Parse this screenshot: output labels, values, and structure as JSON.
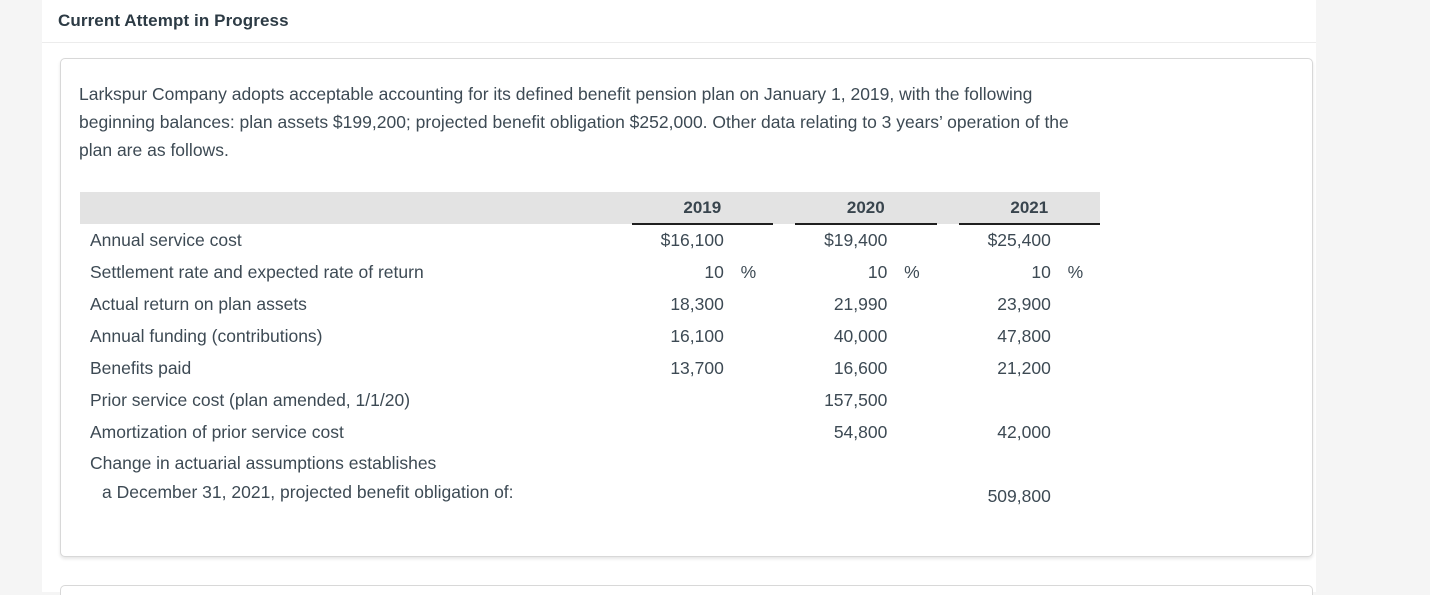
{
  "header": {
    "title": "Current Attempt in Progress"
  },
  "problem": {
    "intro_lines": [
      "Larkspur Company adopts acceptable accounting for its defined benefit pension plan on January 1, 2019, with the following",
      "beginning balances: plan assets $199,200; projected benefit obligation $252,000. Other data relating to 3 years’ operation of the",
      "plan are as follows."
    ],
    "begin_plan_assets": "$199,200",
    "begin_projected_benefit_obligation": "$252,000"
  },
  "table": {
    "year_headers": [
      "2019",
      "2020",
      "2021"
    ],
    "rows": [
      {
        "label": "Annual service cost",
        "y19": "$16,100",
        "p19": "",
        "y20": "$19,400",
        "p20": "",
        "y21": "$25,400",
        "p21": ""
      },
      {
        "label": "Settlement rate and expected rate of return",
        "y19": "10",
        "p19": "%",
        "y20": "10",
        "p20": "%",
        "y21": "10",
        "p21": "%"
      },
      {
        "label": "Actual return on plan assets",
        "y19": "18,300",
        "p19": "",
        "y20": "21,990",
        "p20": "",
        "y21": "23,900",
        "p21": ""
      },
      {
        "label": "Annual funding (contributions)",
        "y19": "16,100",
        "p19": "",
        "y20": "40,000",
        "p20": "",
        "y21": "47,800",
        "p21": ""
      },
      {
        "label": "Benefits paid",
        "y19": "13,700",
        "p19": "",
        "y20": "16,600",
        "p20": "",
        "y21": "21,200",
        "p21": ""
      },
      {
        "label": "Prior service cost (plan amended, 1/1/20)",
        "y19": "",
        "p19": "",
        "y20": "157,500",
        "p20": "",
        "y21": "",
        "p21": ""
      },
      {
        "label": "Amortization of prior service cost",
        "y19": "",
        "p19": "",
        "y20": "54,800",
        "p20": "",
        "y21": "42,000",
        "p21": ""
      }
    ],
    "last_row": {
      "label_line1": "Change in actuarial assumptions establishes",
      "label_line2": "a December 31, 2021, projected benefit obligation of:",
      "y19": "",
      "p19": "",
      "y20": "",
      "p20": "",
      "y21": "509,800",
      "p21": ""
    }
  },
  "colors": {
    "page_background": "#f5f5f5",
    "panel_background": "#ffffff",
    "table_header_background": "#e3e3e3",
    "text": "#3d4a54",
    "year_underline": "#1f1f1f",
    "card_border": "#d8d8d8"
  }
}
